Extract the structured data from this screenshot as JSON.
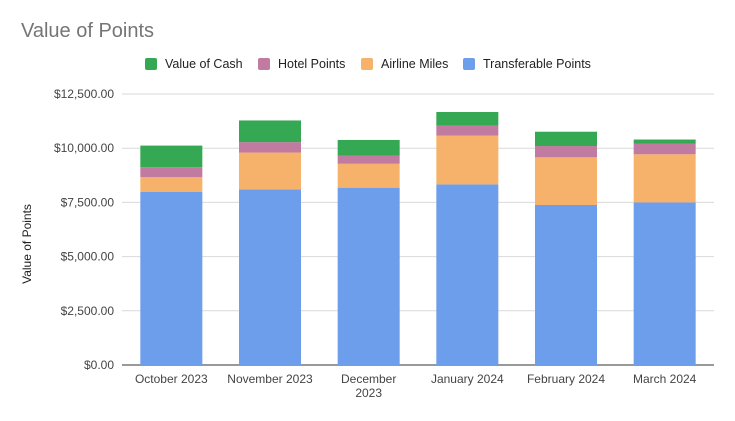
{
  "chart_data": {
    "type": "bar",
    "stacked": true,
    "title": "Value of Points",
    "xlabel": "",
    "ylabel": "Value of Points",
    "ylim": [
      0,
      12500
    ],
    "yticks": [
      "$0.00",
      "$2,500.00",
      "$5,000.00",
      "$7,500.00",
      "$10,000.00",
      "$12,500.00"
    ],
    "ytick_values": [
      0,
      2500,
      5000,
      7500,
      10000,
      12500
    ],
    "categories": [
      "October 2023",
      "November 2023",
      "December 2023",
      "January 2024",
      "February 2024",
      "March 2024"
    ],
    "category_lines": [
      [
        "October 2023"
      ],
      [
        "November 2023"
      ],
      [
        "December",
        "2023"
      ],
      [
        "January 2024"
      ],
      [
        "February 2024"
      ],
      [
        "March 2024"
      ]
    ],
    "grid": true,
    "legend_position": "top",
    "series": [
      {
        "name": "Transferable Points",
        "color": "#6d9eeb",
        "values": [
          7980,
          8100,
          8180,
          8330,
          7380,
          7500
        ]
      },
      {
        "name": "Airline Miles",
        "color": "#f6b26b",
        "values": [
          680,
          1700,
          1100,
          2250,
          2200,
          2220
        ]
      },
      {
        "name": "Hotel Points",
        "color": "#c27ba0",
        "values": [
          460,
          480,
          380,
          470,
          520,
          480
        ]
      },
      {
        "name": "Value of Cash",
        "color": "#34a853",
        "values": [
          1000,
          1000,
          720,
          620,
          660,
          200
        ]
      }
    ],
    "legend_order": [
      "Value of Cash",
      "Hotel Points",
      "Airline Miles",
      "Transferable Points"
    ]
  }
}
